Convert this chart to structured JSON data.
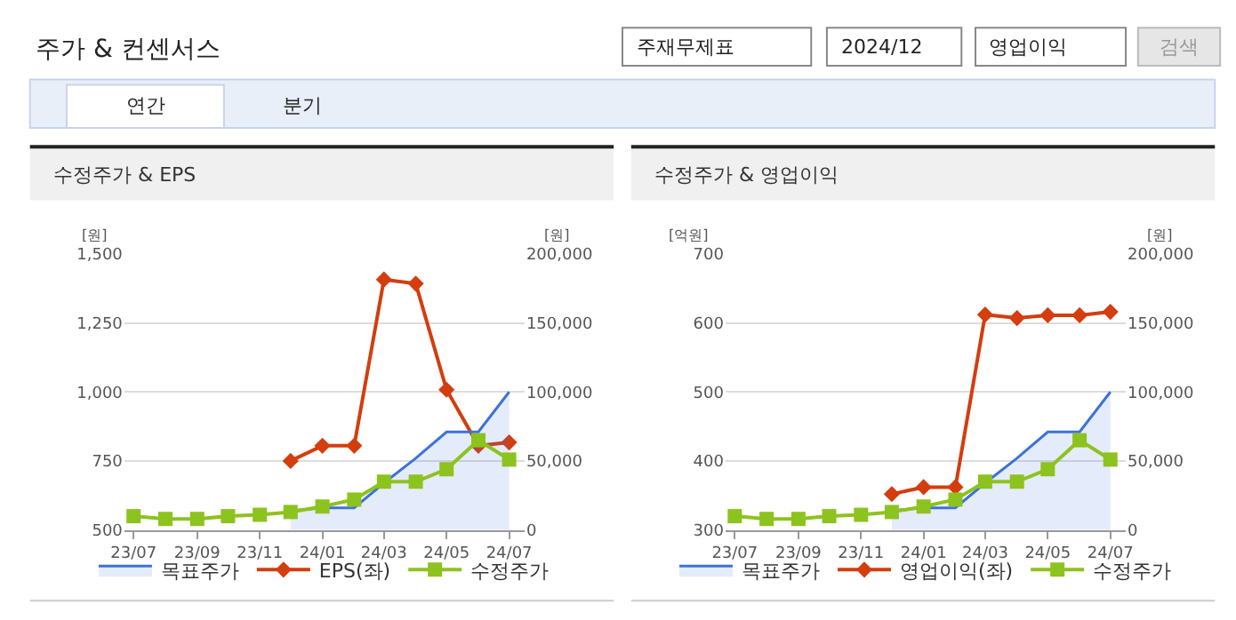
{
  "chart_data": [
    {
      "type": "other",
      "title": "주가 & 컨센서스",
      "annotations": [
        "주재무제표",
        "2024/12",
        "영업이익",
        "검색",
        "연간",
        "분기"
      ]
    },
    {
      "type": "line",
      "title": "수정주가 & EPS",
      "ylabel": "[원]",
      "y2label": "[원]",
      "x": [
        "2023-07",
        "2023-08",
        "2023-09",
        "2023-10",
        "2023-11",
        "2023-12",
        "2024-01",
        "2024-02",
        "2024-03",
        "2024-04",
        "2024-05",
        "2024-06",
        "2024-07"
      ],
      "xlim": [
        "2023-06-22",
        "2024-07-16"
      ],
      "xticks": [
        {
          "value": "2023-07",
          "label": "23/07"
        },
        {
          "value": "2023-09",
          "label": "23/09"
        },
        {
          "value": "2023-11",
          "label": "23/11"
        },
        {
          "value": "2024-01",
          "label": "24/01"
        },
        {
          "value": "2024-03",
          "label": "24/03"
        },
        {
          "value": "2024-05",
          "label": "24/05"
        },
        {
          "value": "2024-07",
          "label": "24/07"
        }
      ],
      "ylim": [
        500,
        1500
      ],
      "yticks": [
        500,
        750,
        {
          "value": 1000,
          "label": "1,000"
        },
        {
          "value": 1250,
          "label": "1,250"
        },
        {
          "value": 1500,
          "label": "1,500"
        }
      ],
      "y2lim": [
        0,
        200000
      ],
      "y2ticks": [
        0,
        {
          "value": 50000,
          "label": "50,000"
        },
        {
          "value": 100000,
          "label": "100,000"
        },
        {
          "value": 150000,
          "label": "150,000"
        },
        {
          "value": 200000,
          "label": "200,000"
        }
      ],
      "grid": "y",
      "legend": "bottom",
      "series": [
        {
          "name": "목표주가",
          "type": "area",
          "axis": "y2",
          "color": "#3d72d9",
          "marker": "none",
          "values": [
            null,
            null,
            null,
            null,
            null,
            14000,
            16000,
            16000,
            34000,
            52000,
            71000,
            71000,
            100000
          ]
        },
        {
          "name": "EPS(좌)",
          "type": "line",
          "color": "#d43d0e",
          "marker": "diamond",
          "values": [
            null,
            null,
            null,
            null,
            null,
            750,
            805,
            805,
            1407,
            1392,
            1008,
            805,
            817
          ]
        },
        {
          "name": "수정주가",
          "type": "line",
          "axis": "y2",
          "color": "#8cc31e",
          "marker": "square",
          "values": [
            10000,
            8000,
            8000,
            10000,
            11000,
            13000,
            17000,
            22000,
            35000,
            35000,
            44000,
            65000,
            51000
          ]
        }
      ]
    },
    {
      "type": "line",
      "title": "수정주가 & 영업이익",
      "ylabel": "[억원]",
      "y2label": "[원]",
      "x": [
        "2023-07",
        "2023-08",
        "2023-09",
        "2023-10",
        "2023-11",
        "2023-12",
        "2024-01",
        "2024-02",
        "2024-03",
        "2024-04",
        "2024-05",
        "2024-06",
        "2024-07"
      ],
      "xlim": [
        "2023-06-22",
        "2024-07-16"
      ],
      "xticks": [
        {
          "value": "2023-07",
          "label": "23/07"
        },
        {
          "value": "2023-09",
          "label": "23/09"
        },
        {
          "value": "2023-11",
          "label": "23/11"
        },
        {
          "value": "2024-01",
          "label": "24/01"
        },
        {
          "value": "2024-03",
          "label": "24/03"
        },
        {
          "value": "2024-05",
          "label": "24/05"
        },
        {
          "value": "2024-07",
          "label": "24/07"
        }
      ],
      "ylim": [
        300,
        700
      ],
      "yticks": [
        300,
        400,
        500,
        600,
        700
      ],
      "y2lim": [
        0,
        200000
      ],
      "y2ticks": [
        0,
        {
          "value": 50000,
          "label": "50,000"
        },
        {
          "value": 100000,
          "label": "100,000"
        },
        {
          "value": 150000,
          "label": "150,000"
        },
        {
          "value": 200000,
          "label": "200,000"
        }
      ],
      "grid": "y",
      "legend": "bottom",
      "series": [
        {
          "name": "목표주가",
          "type": "area",
          "axis": "y2",
          "color": "#3d72d9",
          "marker": "none",
          "values": [
            null,
            null,
            null,
            null,
            null,
            14000,
            16000,
            16000,
            34000,
            52000,
            71000,
            71000,
            100000
          ]
        },
        {
          "name": "영업이익(좌)",
          "type": "line",
          "color": "#d43d0e",
          "marker": "diamond",
          "values": [
            null,
            null,
            null,
            null,
            null,
            352,
            362,
            362,
            612,
            607,
            611,
            611,
            616
          ]
        },
        {
          "name": "수정주가",
          "type": "line",
          "axis": "y2",
          "color": "#8cc31e",
          "marker": "square",
          "values": [
            10000,
            8000,
            8000,
            10000,
            11000,
            13000,
            17000,
            22000,
            35000,
            35000,
            44000,
            65000,
            51000
          ]
        }
      ]
    }
  ]
}
